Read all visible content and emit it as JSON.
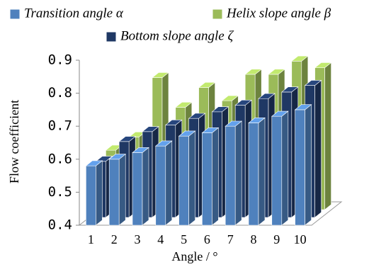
{
  "chart_data": {
    "type": "bar3d",
    "x_label": "Angle / °",
    "y_label": "Flow coefficient",
    "categories": [
      "1",
      "2",
      "3",
      "4",
      "5",
      "6",
      "7",
      "8",
      "9",
      "10"
    ],
    "series": [
      {
        "name": "Transition angle α",
        "color": "#4f81bd",
        "values": [
          0.58,
          0.6,
          0.62,
          0.64,
          0.67,
          0.68,
          0.7,
          0.71,
          0.73,
          0.75
        ]
      },
      {
        "name": "Bottom slope angle ζ",
        "color": "#1f3864",
        "values": [
          0.57,
          0.63,
          0.66,
          0.68,
          0.7,
          0.72,
          0.74,
          0.76,
          0.78,
          0.8
        ]
      },
      {
        "name": "Helix slope angle β",
        "color": "#9bbb59",
        "values": [
          0.58,
          0.62,
          0.8,
          0.71,
          0.77,
          0.73,
          0.81,
          0.81,
          0.85,
          0.83
        ]
      }
    ],
    "ylim": [
      0.4,
      0.9
    ],
    "yticks": [
      0.4,
      0.5,
      0.6,
      0.7,
      0.8,
      0.9
    ]
  }
}
